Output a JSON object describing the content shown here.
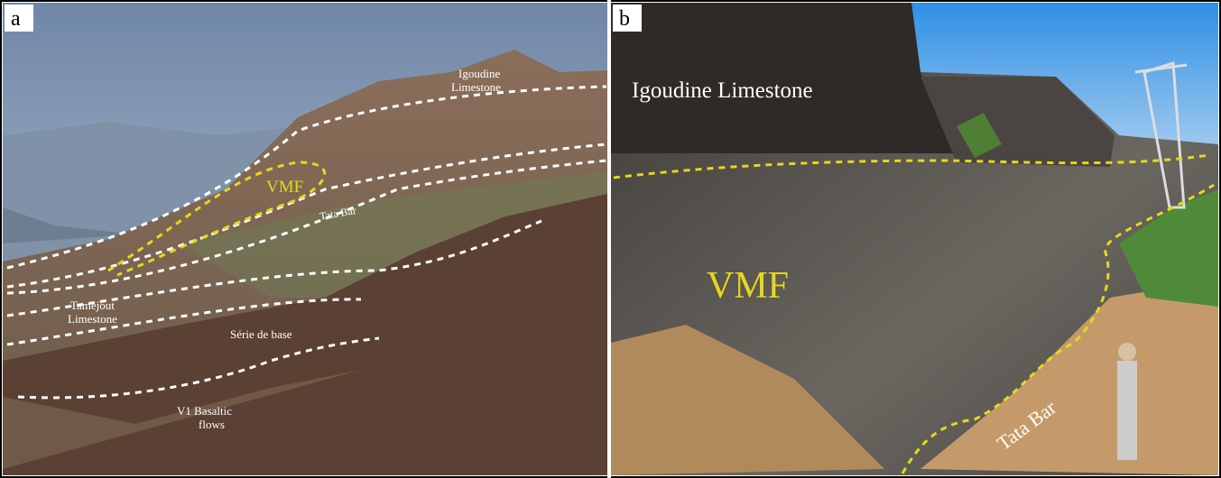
{
  "panels": [
    {
      "label": "a",
      "annotations": [
        {
          "lines": [
            "Igoudine",
            "Limestone"
          ]
        },
        {
          "lines": [
            "VMF"
          ]
        },
        {
          "lines": [
            "Tata Bar"
          ]
        },
        {
          "lines": [
            "Tamejout",
            "Limestone"
          ]
        },
        {
          "lines": [
            "Série de base"
          ]
        },
        {
          "lines": [
            "V1 Basaltic",
            "flows"
          ]
        }
      ]
    },
    {
      "label": "b",
      "annotations": [
        {
          "lines": [
            "Igoudine Limestone"
          ]
        },
        {
          "lines": [
            "VMF"
          ]
        },
        {
          "lines": [
            "Tata Bar"
          ]
        }
      ]
    }
  ]
}
